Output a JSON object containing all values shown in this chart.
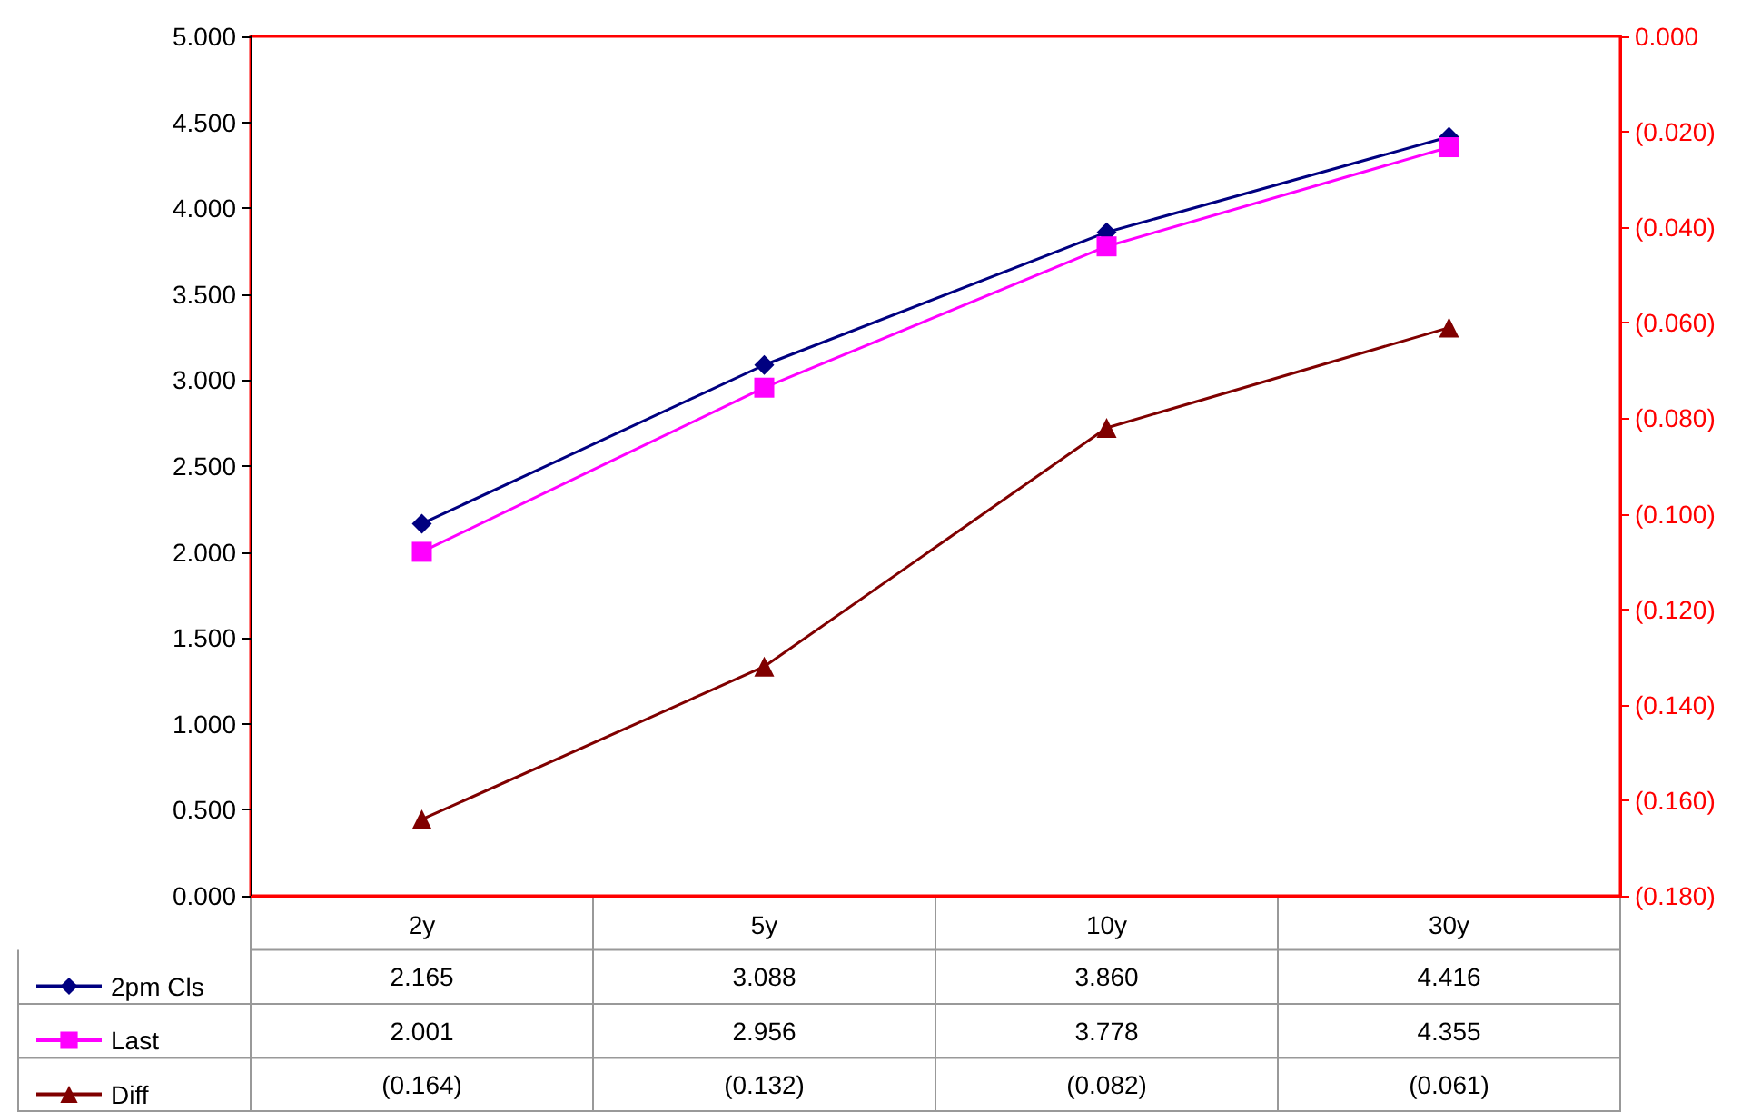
{
  "chart_data": {
    "type": "line",
    "categories": [
      "2y",
      "5y",
      "10y",
      "30y"
    ],
    "series": [
      {
        "name": "2pm Cls",
        "color": "#000080",
        "marker": "diamond",
        "values": [
          2.165,
          3.088,
          3.86,
          4.416
        ],
        "value_labels": [
          "2.165",
          "3.088",
          "3.860",
          "4.416"
        ]
      },
      {
        "name": "Last",
        "color": "#ff00ff",
        "marker": "square",
        "values": [
          2.001,
          2.956,
          3.778,
          4.355
        ],
        "value_labels": [
          "2.001",
          "2.956",
          "3.778",
          "4.355"
        ]
      },
      {
        "name": "Diff",
        "color": "#800000",
        "marker": "triangle",
        "axis": "y2",
        "values": [
          -0.164,
          -0.132,
          -0.082,
          -0.061
        ],
        "value_labels": [
          "(0.164)",
          "(0.132)",
          "(0.082)",
          "(0.061)"
        ]
      }
    ],
    "ylim": [
      0,
      5
    ],
    "yticks": [
      {
        "value": 0,
        "label": "0.000"
      },
      {
        "value": 0.5,
        "label": "0.500"
      },
      {
        "value": 1,
        "label": "1.000"
      },
      {
        "value": 1.5,
        "label": "1.500"
      },
      {
        "value": 2,
        "label": "2.000"
      },
      {
        "value": 2.5,
        "label": "2.500"
      },
      {
        "value": 3,
        "label": "3.000"
      },
      {
        "value": 3.5,
        "label": "3.500"
      },
      {
        "value": 4,
        "label": "4.000"
      },
      {
        "value": 4.5,
        "label": "4.500"
      },
      {
        "value": 5,
        "label": "5.000"
      }
    ],
    "y2lim": [
      -0.18,
      0
    ],
    "y2ticks": [
      {
        "value": -0.18,
        "label": "(0.180)"
      },
      {
        "value": -0.16,
        "label": "(0.160)"
      },
      {
        "value": -0.14,
        "label": "(0.140)"
      },
      {
        "value": -0.12,
        "label": "(0.120)"
      },
      {
        "value": -0.1,
        "label": "(0.100)"
      },
      {
        "value": -0.08,
        "label": "(0.080)"
      },
      {
        "value": -0.06,
        "label": "(0.060)"
      },
      {
        "value": -0.04,
        "label": "(0.040)"
      },
      {
        "value": -0.02,
        "label": "(0.020)"
      },
      {
        "value": 0,
        "label": "0.000"
      }
    ],
    "grid": false,
    "legend": "bottom left"
  }
}
